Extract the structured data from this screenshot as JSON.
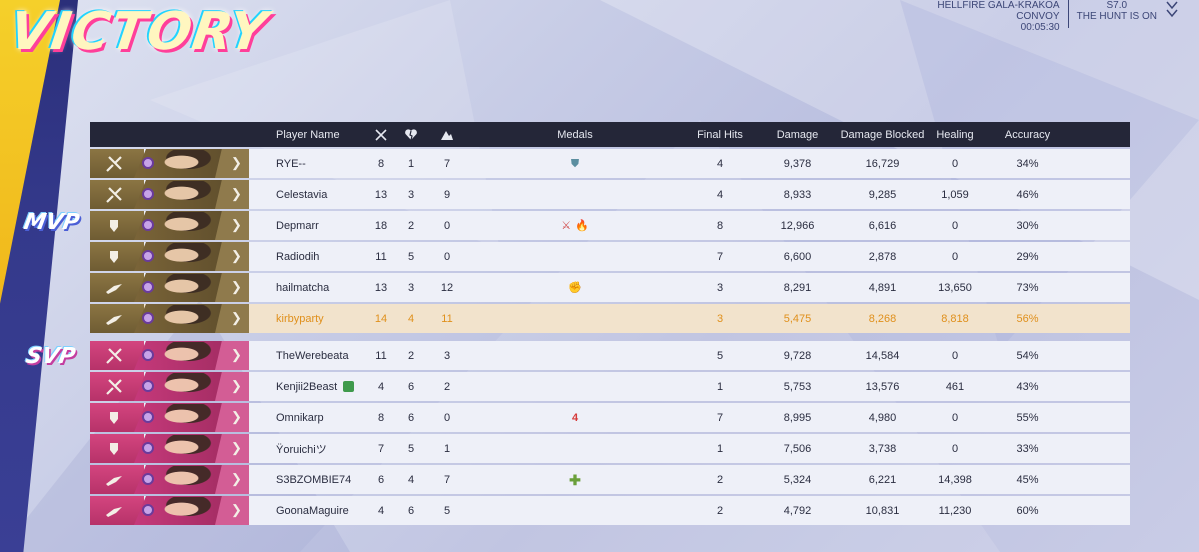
{
  "header": {
    "victory_text": "VICTORY",
    "map_name": "HELLFIRE GALA-KRAKOA",
    "mode": "CONVOY",
    "timer": "00:05:30",
    "season": "S7.0",
    "season_title": "THE HUNT IS ON"
  },
  "badges": {
    "mvp": "MVP",
    "svp": "SVP"
  },
  "columns": {
    "player_name": "Player Name",
    "kills_icon": "kills-icon",
    "deaths_icon": "deaths-icon",
    "assists_icon": "assists-icon",
    "medals": "Medals",
    "final_hits": "Final Hits",
    "damage": "Damage",
    "damage_blocked": "Damage Blocked",
    "healing": "Healing",
    "accuracy": "Accuracy"
  },
  "colors": {
    "team_winner": "#8b7543",
    "team_loser": "#d4457f",
    "self_highlight": "#e0901c"
  },
  "rows": [
    {
      "name": "RYE--",
      "k": "8",
      "d": "1",
      "a": "7",
      "medals": [
        "shield"
      ],
      "fh": "4",
      "dmg": "9,378",
      "blk": "16,729",
      "heal": "0",
      "acc": "34%",
      "team": "gold",
      "role": "vanguard"
    },
    {
      "name": "Celestavia",
      "k": "13",
      "d": "3",
      "a": "9",
      "medals": [],
      "fh": "4",
      "dmg": "8,933",
      "blk": "9,285",
      "heal": "1,059",
      "acc": "46%",
      "team": "gold",
      "role": "vanguard"
    },
    {
      "name": "Depmarr",
      "k": "18",
      "d": "2",
      "a": "0",
      "medals": [
        "cross",
        "fire"
      ],
      "fh": "8",
      "dmg": "12,966",
      "blk": "6,616",
      "heal": "0",
      "acc": "30%",
      "team": "gold",
      "role": "duelist"
    },
    {
      "name": "Radiodih",
      "k": "11",
      "d": "5",
      "a": "0",
      "medals": [],
      "fh": "7",
      "dmg": "6,600",
      "blk": "2,878",
      "heal": "0",
      "acc": "29%",
      "team": "gold",
      "role": "duelist"
    },
    {
      "name": "hailmatcha",
      "k": "13",
      "d": "3",
      "a": "12",
      "medals": [
        "fist"
      ],
      "fh": "3",
      "dmg": "8,291",
      "blk": "4,891",
      "heal": "13,650",
      "acc": "73%",
      "team": "gold",
      "role": "strategist"
    },
    {
      "name": "kirbyparty",
      "k": "14",
      "d": "4",
      "a": "11",
      "medals": [],
      "fh": "3",
      "dmg": "5,475",
      "blk": "8,268",
      "heal": "8,818",
      "acc": "56%",
      "team": "gold",
      "role": "strategist",
      "self": true
    },
    {
      "name": "TheWerebeata",
      "k": "11",
      "d": "2",
      "a": "3",
      "medals": [],
      "fh": "5",
      "dmg": "9,728",
      "blk": "14,584",
      "heal": "0",
      "acc": "54%",
      "team": "pink",
      "role": "vanguard"
    },
    {
      "name": "Kenjii2Beast",
      "k": "4",
      "d": "6",
      "a": "2",
      "medals": [],
      "fh": "1",
      "dmg": "5,753",
      "blk": "13,576",
      "heal": "461",
      "acc": "43%",
      "team": "pink",
      "role": "vanguard",
      "friend": true
    },
    {
      "name": "Omnikarp",
      "k": "8",
      "d": "6",
      "a": "0",
      "medals": [
        "four"
      ],
      "fh": "7",
      "dmg": "8,995",
      "blk": "4,980",
      "heal": "0",
      "acc": "55%",
      "team": "pink",
      "role": "duelist"
    },
    {
      "name": "Ÿoruichiツ",
      "k": "7",
      "d": "5",
      "a": "1",
      "medals": [],
      "fh": "1",
      "dmg": "7,506",
      "blk": "3,738",
      "heal": "0",
      "acc": "33%",
      "team": "pink",
      "role": "duelist"
    },
    {
      "name": "S3BZOMBIE74",
      "k": "6",
      "d": "4",
      "a": "7",
      "medals": [
        "plus"
      ],
      "fh": "2",
      "dmg": "5,324",
      "blk": "6,221",
      "heal": "14,398",
      "acc": "45%",
      "team": "pink",
      "role": "strategist"
    },
    {
      "name": "GoonaMaguire",
      "k": "4",
      "d": "6",
      "a": "5",
      "medals": [],
      "fh": "2",
      "dmg": "4,792",
      "blk": "10,831",
      "heal": "11,230",
      "acc": "60%",
      "team": "pink",
      "role": "strategist"
    }
  ]
}
